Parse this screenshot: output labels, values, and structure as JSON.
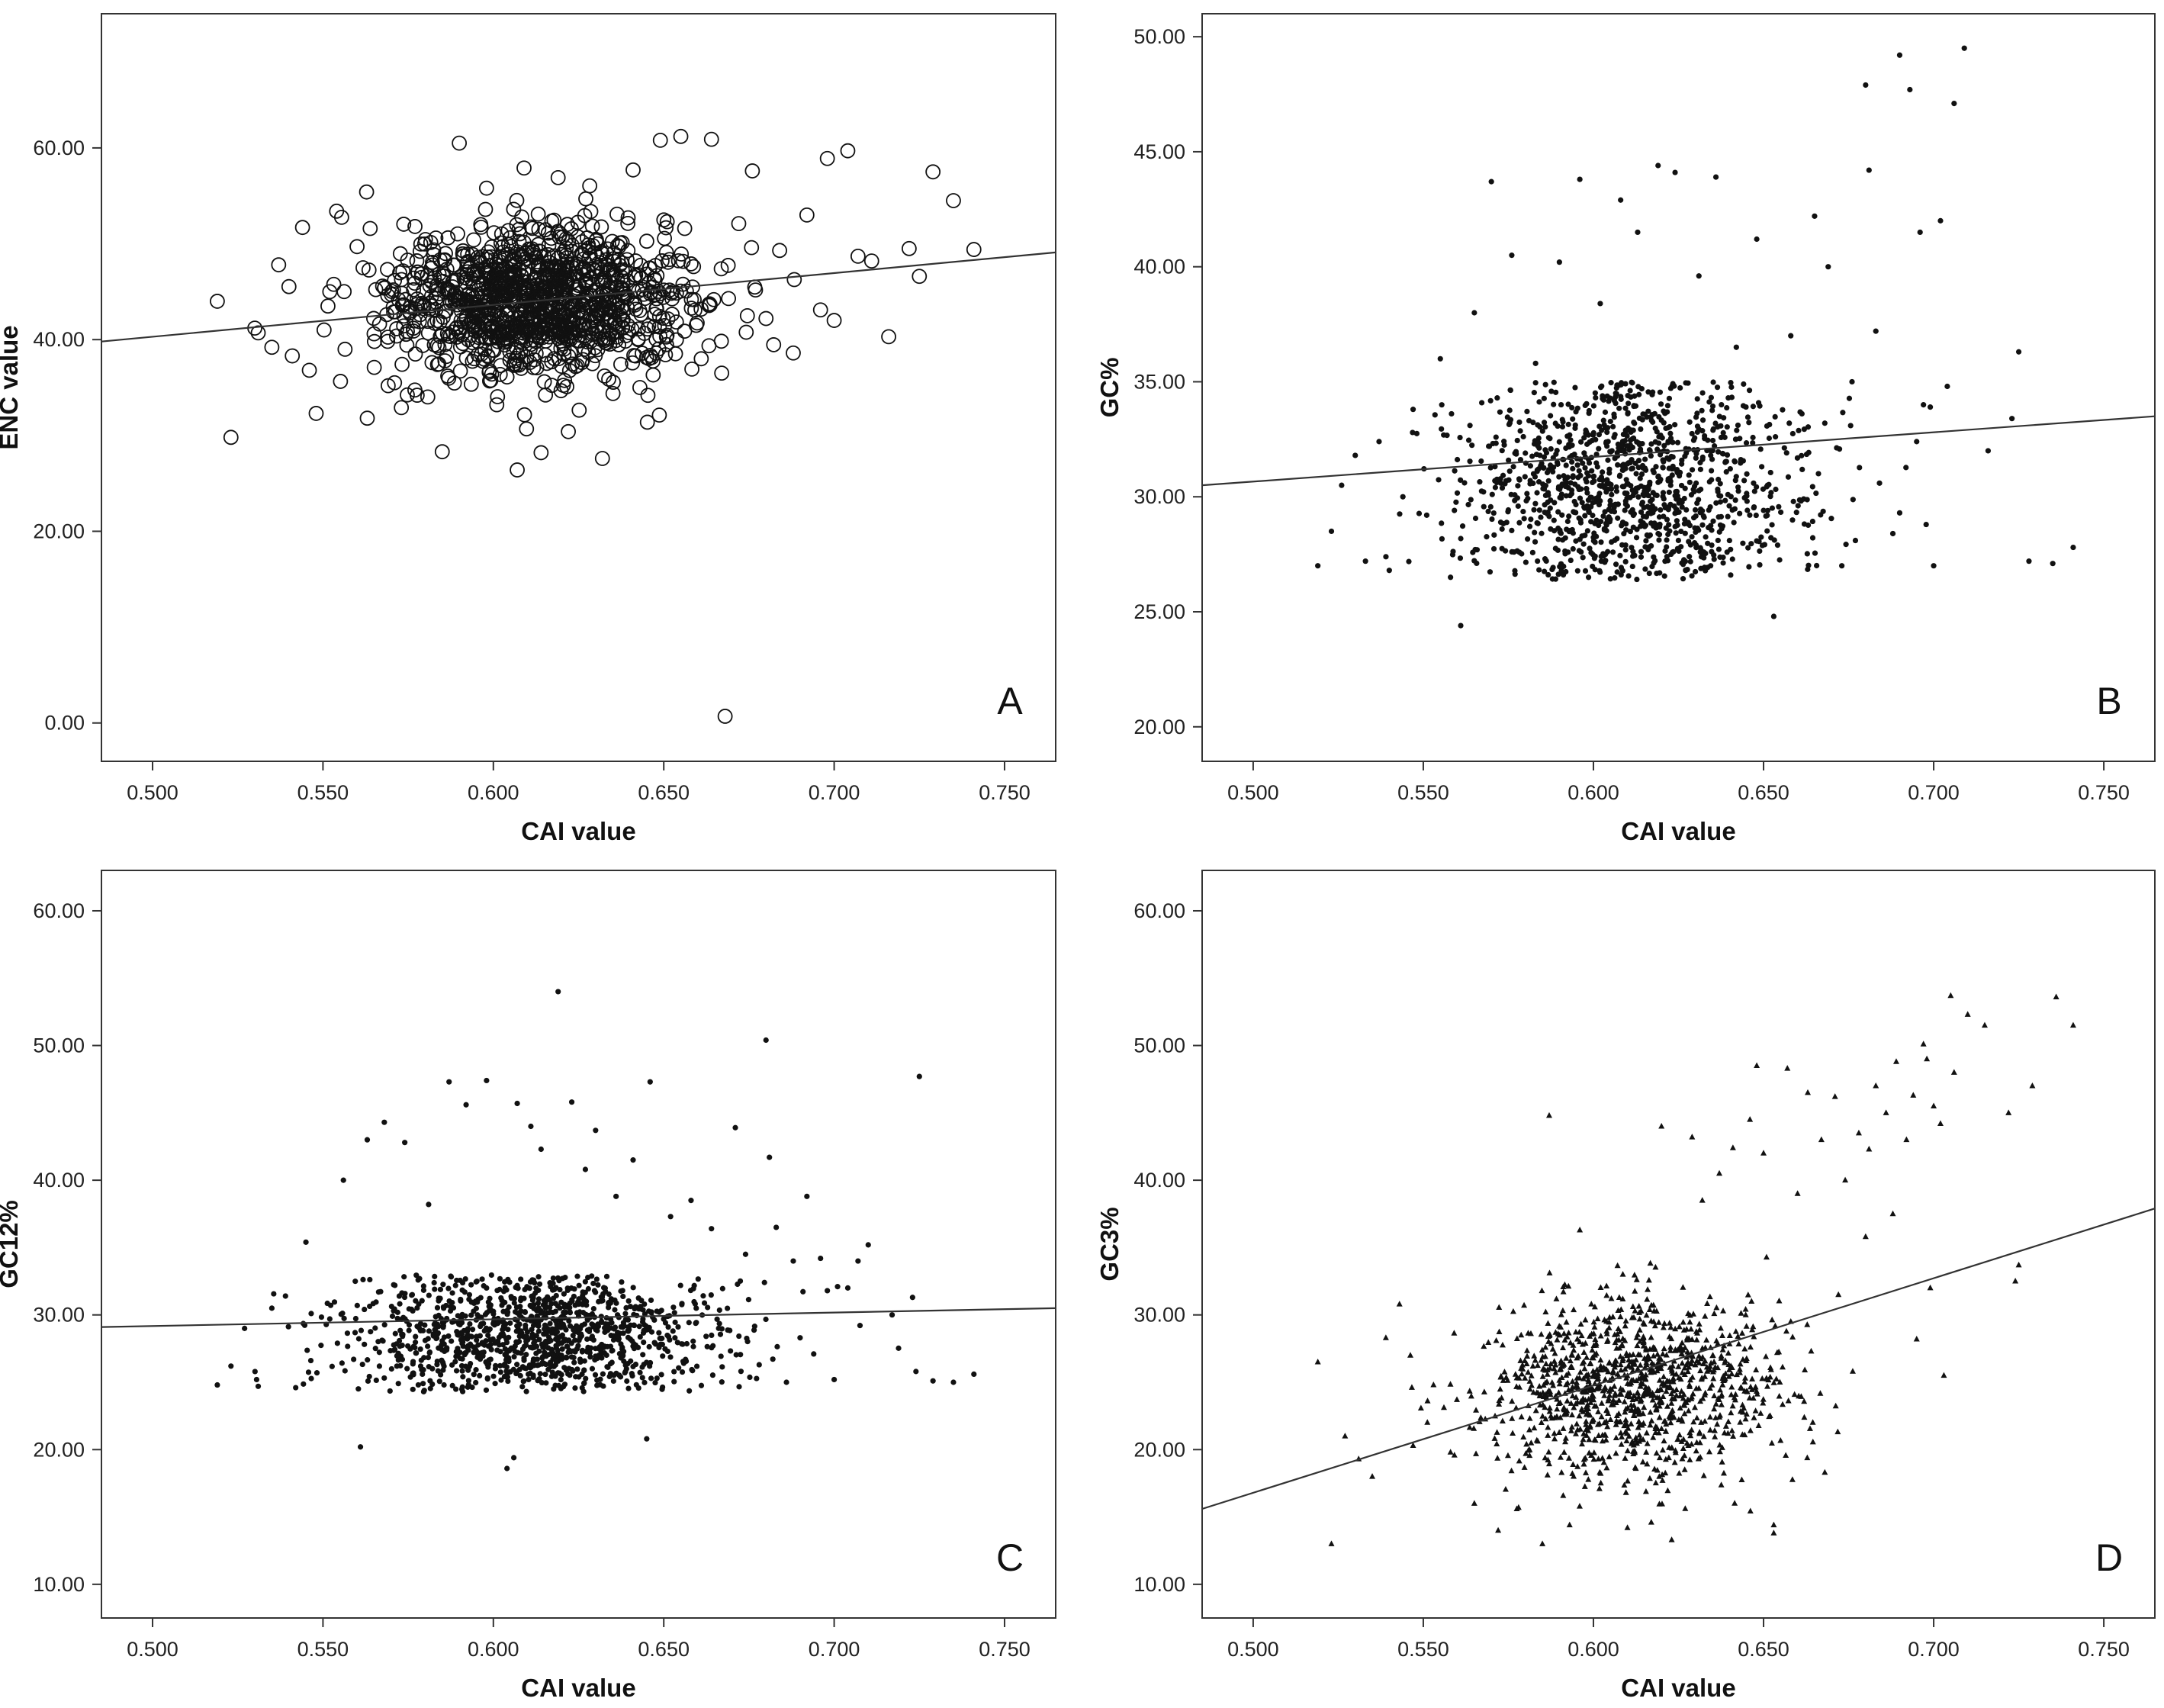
{
  "chart_data": [
    {
      "type": "scatter",
      "panel_label": "A",
      "xlabel": "CAI value",
      "ylabel": "ENC value",
      "xlim": [
        0.485,
        0.765
      ],
      "ylim": [
        -4,
        74
      ],
      "xticks": [
        "0.500",
        "0.550",
        "0.600",
        "0.650",
        "0.700",
        "0.750"
      ],
      "yticks": [
        "0.00",
        "20.00",
        "40.00",
        "60.00"
      ],
      "marker": "open-circle",
      "trend_line": {
        "x": [
          0.485,
          0.765
        ],
        "y": [
          39.8,
          49.1
        ]
      },
      "points": [
        [
          0.519,
          44.0
        ],
        [
          0.523,
          29.8
        ],
        [
          0.53,
          41.2
        ],
        [
          0.531,
          40.7
        ],
        [
          0.535,
          39.2
        ],
        [
          0.537,
          47.8
        ],
        [
          0.541,
          38.3
        ],
        [
          0.544,
          51.7
        ],
        [
          0.546,
          36.8
        ],
        [
          0.548,
          32.3
        ],
        [
          0.552,
          45.0
        ],
        [
          0.554,
          53.4
        ],
        [
          0.563,
          31.8
        ],
        [
          0.565,
          40.6
        ],
        [
          0.571,
          35.5
        ],
        [
          0.573,
          32.9
        ],
        [
          0.585,
          28.3
        ],
        [
          0.59,
          60.5
        ],
        [
          0.593,
          47.4
        ],
        [
          0.598,
          55.8
        ],
        [
          0.601,
          33.2
        ],
        [
          0.604,
          36.1
        ],
        [
          0.607,
          26.4
        ],
        [
          0.609,
          57.9
        ],
        [
          0.611,
          39.5
        ],
        [
          0.614,
          28.2
        ],
        [
          0.616,
          47.6
        ],
        [
          0.619,
          56.9
        ],
        [
          0.622,
          30.4
        ],
        [
          0.626,
          50.2
        ],
        [
          0.628,
          41.3
        ],
        [
          0.632,
          27.6
        ],
        [
          0.636,
          39.9
        ],
        [
          0.641,
          57.7
        ],
        [
          0.643,
          35.0
        ],
        [
          0.649,
          60.8
        ],
        [
          0.651,
          52.3
        ],
        [
          0.655,
          61.2
        ],
        [
          0.658,
          47.9
        ],
        [
          0.661,
          38.0
        ],
        [
          0.664,
          60.9
        ],
        [
          0.667,
          36.5
        ],
        [
          0.668,
          0.7
        ],
        [
          0.672,
          52.1
        ],
        [
          0.676,
          57.6
        ],
        [
          0.68,
          42.2
        ],
        [
          0.684,
          49.3
        ],
        [
          0.688,
          38.6
        ],
        [
          0.692,
          53.0
        ],
        [
          0.696,
          43.1
        ],
        [
          0.698,
          58.9
        ],
        [
          0.7,
          42.0
        ],
        [
          0.704,
          59.7
        ],
        [
          0.707,
          48.7
        ],
        [
          0.711,
          48.2
        ],
        [
          0.716,
          40.3
        ],
        [
          0.722,
          49.5
        ],
        [
          0.725,
          46.6
        ],
        [
          0.729,
          57.5
        ],
        [
          0.735,
          54.5
        ],
        [
          0.741,
          49.4
        ],
        [
          0.56,
          49.7
        ],
        [
          0.569,
          44.6
        ],
        [
          0.577,
          51.8
        ],
        [
          0.582,
          37.6
        ],
        [
          0.588,
          43.9
        ],
        [
          0.595,
          42.3
        ],
        [
          0.603,
          48.5
        ],
        [
          0.612,
          41.0
        ],
        [
          0.62,
          45.2
        ],
        [
          0.63,
          43.7
        ],
        [
          0.638,
          46.1
        ],
        [
          0.646,
          44.8
        ]
      ],
      "dense_cloud": {
        "x_center": 0.613,
        "x_sd": 0.022,
        "y_center": 44.0,
        "y_sd": 4.0,
        "count": 1150,
        "y_min": 28,
        "y_max": 57
      }
    },
    {
      "type": "scatter",
      "panel_label": "B",
      "xlabel": "CAI value",
      "ylabel": "GC%",
      "xlim": [
        0.485,
        0.765
      ],
      "ylim": [
        18.5,
        51.0
      ],
      "xticks": [
        "0.500",
        "0.550",
        "0.600",
        "0.650",
        "0.700",
        "0.750"
      ],
      "yticks": [
        "20.00",
        "25.00",
        "30.00",
        "35.00",
        "40.00",
        "45.00",
        "50.00"
      ],
      "marker": "dot",
      "trend_line": {
        "x": [
          0.485,
          0.765
        ],
        "y": [
          30.5,
          33.5
        ]
      },
      "points": [
        [
          0.519,
          27.0
        ],
        [
          0.523,
          28.5
        ],
        [
          0.526,
          30.5
        ],
        [
          0.53,
          31.8
        ],
        [
          0.533,
          27.2
        ],
        [
          0.537,
          32.4
        ],
        [
          0.54,
          26.8
        ],
        [
          0.544,
          30.0
        ],
        [
          0.547,
          33.8
        ],
        [
          0.551,
          29.2
        ],
        [
          0.555,
          36.0
        ],
        [
          0.558,
          26.5
        ],
        [
          0.561,
          24.4
        ],
        [
          0.565,
          38.0
        ],
        [
          0.57,
          43.7
        ],
        [
          0.576,
          40.5
        ],
        [
          0.583,
          35.8
        ],
        [
          0.59,
          40.2
        ],
        [
          0.596,
          43.8
        ],
        [
          0.602,
          38.4
        ],
        [
          0.608,
          42.9
        ],
        [
          0.613,
          41.5
        ],
        [
          0.619,
          44.4
        ],
        [
          0.624,
          44.1
        ],
        [
          0.631,
          39.6
        ],
        [
          0.636,
          43.9
        ],
        [
          0.642,
          36.5
        ],
        [
          0.648,
          41.2
        ],
        [
          0.653,
          24.8
        ],
        [
          0.658,
          37.0
        ],
        [
          0.665,
          42.2
        ],
        [
          0.669,
          40.0
        ],
        [
          0.673,
          27.0
        ],
        [
          0.677,
          28.1
        ],
        [
          0.68,
          47.9
        ],
        [
          0.681,
          44.2
        ],
        [
          0.683,
          37.2
        ],
        [
          0.688,
          28.4
        ],
        [
          0.69,
          49.2
        ],
        [
          0.693,
          47.7
        ],
        [
          0.696,
          41.5
        ],
        [
          0.697,
          34.0
        ],
        [
          0.699,
          33.9
        ],
        [
          0.7,
          27.0
        ],
        [
          0.702,
          42.0
        ],
        [
          0.704,
          34.8
        ],
        [
          0.706,
          47.1
        ],
        [
          0.709,
          49.5
        ],
        [
          0.716,
          32.0
        ],
        [
          0.723,
          33.4
        ],
        [
          0.725,
          36.3
        ],
        [
          0.728,
          27.2
        ],
        [
          0.735,
          27.1
        ],
        [
          0.741,
          27.8
        ],
        [
          0.695,
          32.4
        ],
        [
          0.69,
          29.3
        ],
        [
          0.676,
          35.0
        ],
        [
          0.668,
          33.2
        ]
      ],
      "dense_cloud": {
        "x_center": 0.612,
        "x_sd": 0.025,
        "y_center": 30.5,
        "y_sd": 2.4,
        "count": 1200,
        "y_min": 26.4,
        "y_max": 35.0
      }
    },
    {
      "type": "scatter",
      "panel_label": "C",
      "xlabel": "CAI value",
      "ylabel": "GC12%",
      "xlim": [
        0.485,
        0.765
      ],
      "ylim": [
        7.5,
        63.0
      ],
      "xticks": [
        "0.500",
        "0.550",
        "0.600",
        "0.650",
        "0.700",
        "0.750"
      ],
      "yticks": [
        "10.00",
        "20.00",
        "30.00",
        "40.00",
        "50.00",
        "60.00"
      ],
      "marker": "dot",
      "trend_line": {
        "x": [
          0.485,
          0.765
        ],
        "y": [
          29.1,
          30.5
        ]
      },
      "points": [
        [
          0.519,
          24.8
        ],
        [
          0.523,
          26.2
        ],
        [
          0.527,
          29.0
        ],
        [
          0.531,
          24.7
        ],
        [
          0.535,
          30.5
        ],
        [
          0.539,
          31.4
        ],
        [
          0.542,
          24.6
        ],
        [
          0.545,
          35.4
        ],
        [
          0.552,
          29.7
        ],
        [
          0.556,
          40.0
        ],
        [
          0.561,
          20.2
        ],
        [
          0.563,
          43.0
        ],
        [
          0.568,
          44.3
        ],
        [
          0.574,
          42.8
        ],
        [
          0.581,
          38.2
        ],
        [
          0.587,
          47.3
        ],
        [
          0.592,
          45.6
        ],
        [
          0.598,
          47.4
        ],
        [
          0.604,
          18.6
        ],
        [
          0.606,
          19.4
        ],
        [
          0.607,
          45.7
        ],
        [
          0.611,
          44.0
        ],
        [
          0.614,
          42.3
        ],
        [
          0.619,
          54.0
        ],
        [
          0.623,
          45.8
        ],
        [
          0.627,
          40.8
        ],
        [
          0.63,
          43.7
        ],
        [
          0.636,
          38.8
        ],
        [
          0.641,
          41.5
        ],
        [
          0.645,
          20.8
        ],
        [
          0.646,
          47.3
        ],
        [
          0.652,
          37.3
        ],
        [
          0.658,
          38.5
        ],
        [
          0.664,
          36.4
        ],
        [
          0.671,
          43.9
        ],
        [
          0.674,
          34.5
        ],
        [
          0.68,
          50.4
        ],
        [
          0.681,
          41.7
        ],
        [
          0.683,
          36.5
        ],
        [
          0.688,
          34.0
        ],
        [
          0.692,
          38.8
        ],
        [
          0.696,
          34.2
        ],
        [
          0.698,
          31.8
        ],
        [
          0.7,
          25.2
        ],
        [
          0.701,
          32.1
        ],
        [
          0.704,
          32.0
        ],
        [
          0.707,
          34.0
        ],
        [
          0.71,
          35.2
        ],
        [
          0.717,
          30.0
        ],
        [
          0.723,
          31.3
        ],
        [
          0.724,
          25.8
        ],
        [
          0.725,
          47.7
        ],
        [
          0.729,
          25.1
        ],
        [
          0.735,
          25.0
        ],
        [
          0.741,
          25.6
        ],
        [
          0.69,
          28.3
        ],
        [
          0.694,
          27.1
        ],
        [
          0.686,
          25.0
        ],
        [
          0.678,
          26.3
        ]
      ],
      "dense_cloud": {
        "x_center": 0.612,
        "x_sd": 0.026,
        "y_center": 28.5,
        "y_sd": 2.3,
        "count": 1200,
        "y_min": 24.3,
        "y_max": 33.0
      }
    },
    {
      "type": "scatter",
      "panel_label": "D",
      "xlabel": "CAI value",
      "ylabel": "GC3%",
      "xlim": [
        0.485,
        0.765
      ],
      "ylim": [
        7.5,
        63.0
      ],
      "xticks": [
        "0.500",
        "0.550",
        "0.600",
        "0.650",
        "0.700",
        "0.750"
      ],
      "yticks": [
        "10.00",
        "20.00",
        "30.00",
        "40.00",
        "50.00",
        "60.00"
      ],
      "marker": "triangle",
      "trend_line": {
        "x": [
          0.485,
          0.765
        ],
        "y": [
          15.6,
          37.9
        ]
      },
      "points": [
        [
          0.519,
          26.5
        ],
        [
          0.523,
          13.0
        ],
        [
          0.527,
          21.0
        ],
        [
          0.531,
          19.3
        ],
        [
          0.535,
          18.0
        ],
        [
          0.539,
          28.3
        ],
        [
          0.543,
          30.8
        ],
        [
          0.547,
          20.3
        ],
        [
          0.553,
          24.8
        ],
        [
          0.558,
          19.8
        ],
        [
          0.565,
          16.0
        ],
        [
          0.572,
          14.0
        ],
        [
          0.578,
          15.7
        ],
        [
          0.585,
          13.0
        ],
        [
          0.587,
          44.8
        ],
        [
          0.593,
          14.4
        ],
        [
          0.596,
          36.3
        ],
        [
          0.61,
          14.2
        ],
        [
          0.617,
          14.6
        ],
        [
          0.62,
          44.0
        ],
        [
          0.623,
          13.3
        ],
        [
          0.629,
          43.2
        ],
        [
          0.632,
          38.5
        ],
        [
          0.637,
          40.5
        ],
        [
          0.641,
          42.4
        ],
        [
          0.646,
          44.5
        ],
        [
          0.648,
          48.5
        ],
        [
          0.65,
          42.0
        ],
        [
          0.653,
          14.4
        ],
        [
          0.653,
          13.8
        ],
        [
          0.657,
          48.3
        ],
        [
          0.66,
          39.0
        ],
        [
          0.663,
          46.5
        ],
        [
          0.667,
          43.0
        ],
        [
          0.671,
          46.2
        ],
        [
          0.674,
          40.0
        ],
        [
          0.678,
          43.5
        ],
        [
          0.681,
          42.3
        ],
        [
          0.683,
          47.0
        ],
        [
          0.686,
          45.0
        ],
        [
          0.689,
          48.8
        ],
        [
          0.692,
          43.0
        ],
        [
          0.694,
          46.3
        ],
        [
          0.695,
          28.2
        ],
        [
          0.697,
          50.1
        ],
        [
          0.698,
          49.0
        ],
        [
          0.7,
          45.5
        ],
        [
          0.702,
          44.2
        ],
        [
          0.703,
          25.5
        ],
        [
          0.705,
          53.7
        ],
        [
          0.706,
          48.0
        ],
        [
          0.71,
          52.3
        ],
        [
          0.715,
          51.5
        ],
        [
          0.722,
          45.0
        ],
        [
          0.724,
          32.5
        ],
        [
          0.725,
          33.7
        ],
        [
          0.729,
          47.0
        ],
        [
          0.736,
          53.6
        ],
        [
          0.741,
          51.5
        ],
        [
          0.668,
          18.3
        ],
        [
          0.672,
          31.5
        ],
        [
          0.68,
          35.8
        ],
        [
          0.688,
          37.5
        ],
        [
          0.699,
          32.0
        ],
        [
          0.664,
          27.3
        ],
        [
          0.658,
          29.5
        ]
      ],
      "dense_cloud": {
        "x_center": 0.612,
        "x_sd": 0.021,
        "y_center": 24.5,
        "y_sd": 3.3,
        "count": 1150,
        "y_min": 13.5,
        "y_max": 36.0
      }
    }
  ]
}
